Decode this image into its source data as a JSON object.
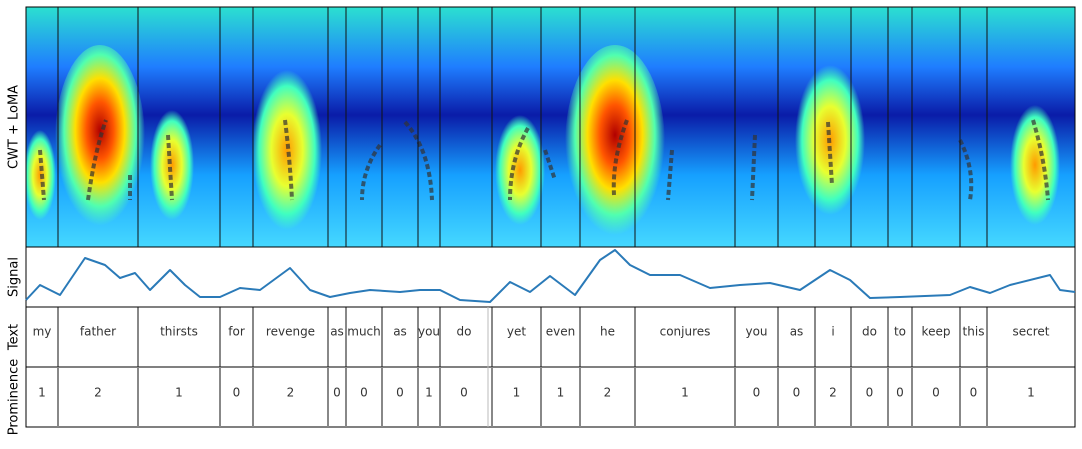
{
  "labels": {
    "cwt": "CWT + LoMA",
    "signal": "Signal",
    "text": "Text",
    "prominence": "Prominence"
  },
  "words": [
    {
      "text": "my",
      "prominence": "1"
    },
    {
      "text": "father",
      "prominence": "2"
    },
    {
      "text": "thirsts",
      "prominence": "1"
    },
    {
      "text": "for",
      "prominence": "0"
    },
    {
      "text": "revenge",
      "prominence": "2"
    },
    {
      "text": "as",
      "prominence": "0"
    },
    {
      "text": "much",
      "prominence": "0"
    },
    {
      "text": "as",
      "prominence": "0"
    },
    {
      "text": "you",
      "prominence": "1"
    },
    {
      "text": "do",
      "prominence": "0"
    },
    {
      "text": "yet",
      "prominence": "1"
    },
    {
      "text": "even",
      "prominence": "1"
    },
    {
      "text": "he",
      "prominence": "2"
    },
    {
      "text": "conjures",
      "prominence": "1"
    },
    {
      "text": "you",
      "prominence": "0"
    },
    {
      "text": "as",
      "prominence": "0"
    },
    {
      "text": "i",
      "prominence": "2"
    },
    {
      "text": "do",
      "prominence": "0"
    },
    {
      "text": "to",
      "prominence": "0"
    },
    {
      "text": "keep",
      "prominence": "0"
    },
    {
      "text": "this",
      "prominence": "0"
    },
    {
      "text": "secret",
      "prominence": "1"
    }
  ]
}
